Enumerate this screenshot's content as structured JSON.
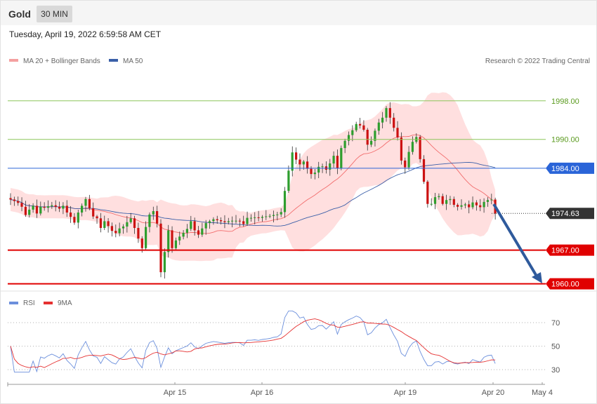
{
  "header": {
    "symbol": "Gold",
    "timeframe": "30 MIN",
    "datetime": "Tuesday, April 19, 2022 6:59:58 AM CET"
  },
  "legend": {
    "ma20_label": "MA 20 + Bollinger Bands",
    "ma50_label": "MA 50",
    "credit": "Research © 2022 Trading Central",
    "rsi_label": "RSI",
    "rsi_ma_label": "9MA"
  },
  "colors": {
    "bull": "#2e9e2e",
    "bear": "#cc1111",
    "ma20": "#f26d6d",
    "ma50": "#3a5fa8",
    "band": "#ffd9d9",
    "resistance": "#8cc65a",
    "pivot": "#2a64d8",
    "support": "#e00000",
    "current": "#333333",
    "arrow": "#2f5a9c",
    "rsi": "#6b8fdc",
    "rsi_ma": "#e53030"
  },
  "chart_data": [
    {
      "type": "candlestick",
      "title": "Gold 30 MIN",
      "x_labels": [
        "Apr 15",
        "Apr 16",
        "Apr 19",
        "Apr 20",
        "May 4"
      ],
      "ylim": [
        1958,
        2000
      ],
      "levels": [
        {
          "value": 1998.0,
          "label": "1998.00",
          "kind": "resistance"
        },
        {
          "value": 1990.0,
          "label": "1990.00",
          "kind": "resistance"
        },
        {
          "value": 1984.0,
          "label": "1984.00",
          "kind": "pivot"
        },
        {
          "value": 1974.63,
          "label": "1974.63",
          "kind": "current"
        },
        {
          "value": 1967.0,
          "label": "1967.00",
          "kind": "support"
        },
        {
          "value": 1960.0,
          "label": "1960.00",
          "kind": "support"
        }
      ],
      "closes": [
        1977.5,
        1977.2,
        1976.8,
        1976.0,
        1974.3,
        1975.4,
        1976.2,
        1974.6,
        1976.0,
        1975.8,
        1976.1,
        1976.3,
        1976.0,
        1975.6,
        1976.2,
        1974.8,
        1973.9,
        1972.7,
        1974.8,
        1976.2,
        1977.6,
        1975.7,
        1974.0,
        1973.6,
        1971.6,
        1973.0,
        1972.0,
        1971.0,
        1970.5,
        1971.5,
        1971.9,
        1972.8,
        1973.6,
        1971.6,
        1969.4,
        1967.4,
        1971.8,
        1974.4,
        1975.1,
        1972.5,
        1962.4,
        1966.6,
        1971.1,
        1967.4,
        1969.0,
        1969.8,
        1970.6,
        1971.4,
        1973.0,
        1971.1,
        1970.2,
        1971.5,
        1972.6,
        1973.0,
        1973.4,
        1973.2,
        1973.0,
        1972.8,
        1973.0,
        1973.1,
        1973.1,
        1973.0,
        1972.4,
        1973.7,
        1973.7,
        1973.8,
        1973.7,
        1973.9,
        1974.0,
        1974.1,
        1974.3,
        1974.4,
        1974.9,
        1979.3,
        1983.5,
        1987.3,
        1985.8,
        1984.8,
        1985.4,
        1983.9,
        1982.8,
        1983.1,
        1984.3,
        1984.4,
        1983.7,
        1985.0,
        1986.6,
        1984.0,
        1988.2,
        1989.7,
        1990.9,
        1991.9,
        1993.2,
        1992.9,
        1992.0,
        1988.9,
        1989.7,
        1991.8,
        1993.5,
        1994.5,
        1996.5,
        1994.5,
        1992.4,
        1990.4,
        1985.6,
        1984.2,
        1987.4,
        1989.5,
        1990.5,
        1985.9,
        1981.2,
        1976.6,
        1976.6,
        1978.0,
        1978.2,
        1976.6,
        1977.4,
        1977.6,
        1976.4,
        1976.0,
        1976.3,
        1976.5,
        1975.9,
        1976.9,
        1976.3,
        1975.9,
        1977.0,
        1977.4,
        1977.5,
        1974.6
      ],
      "rsi": {
        "levels": [
          70,
          50,
          30
        ]
      }
    }
  ]
}
